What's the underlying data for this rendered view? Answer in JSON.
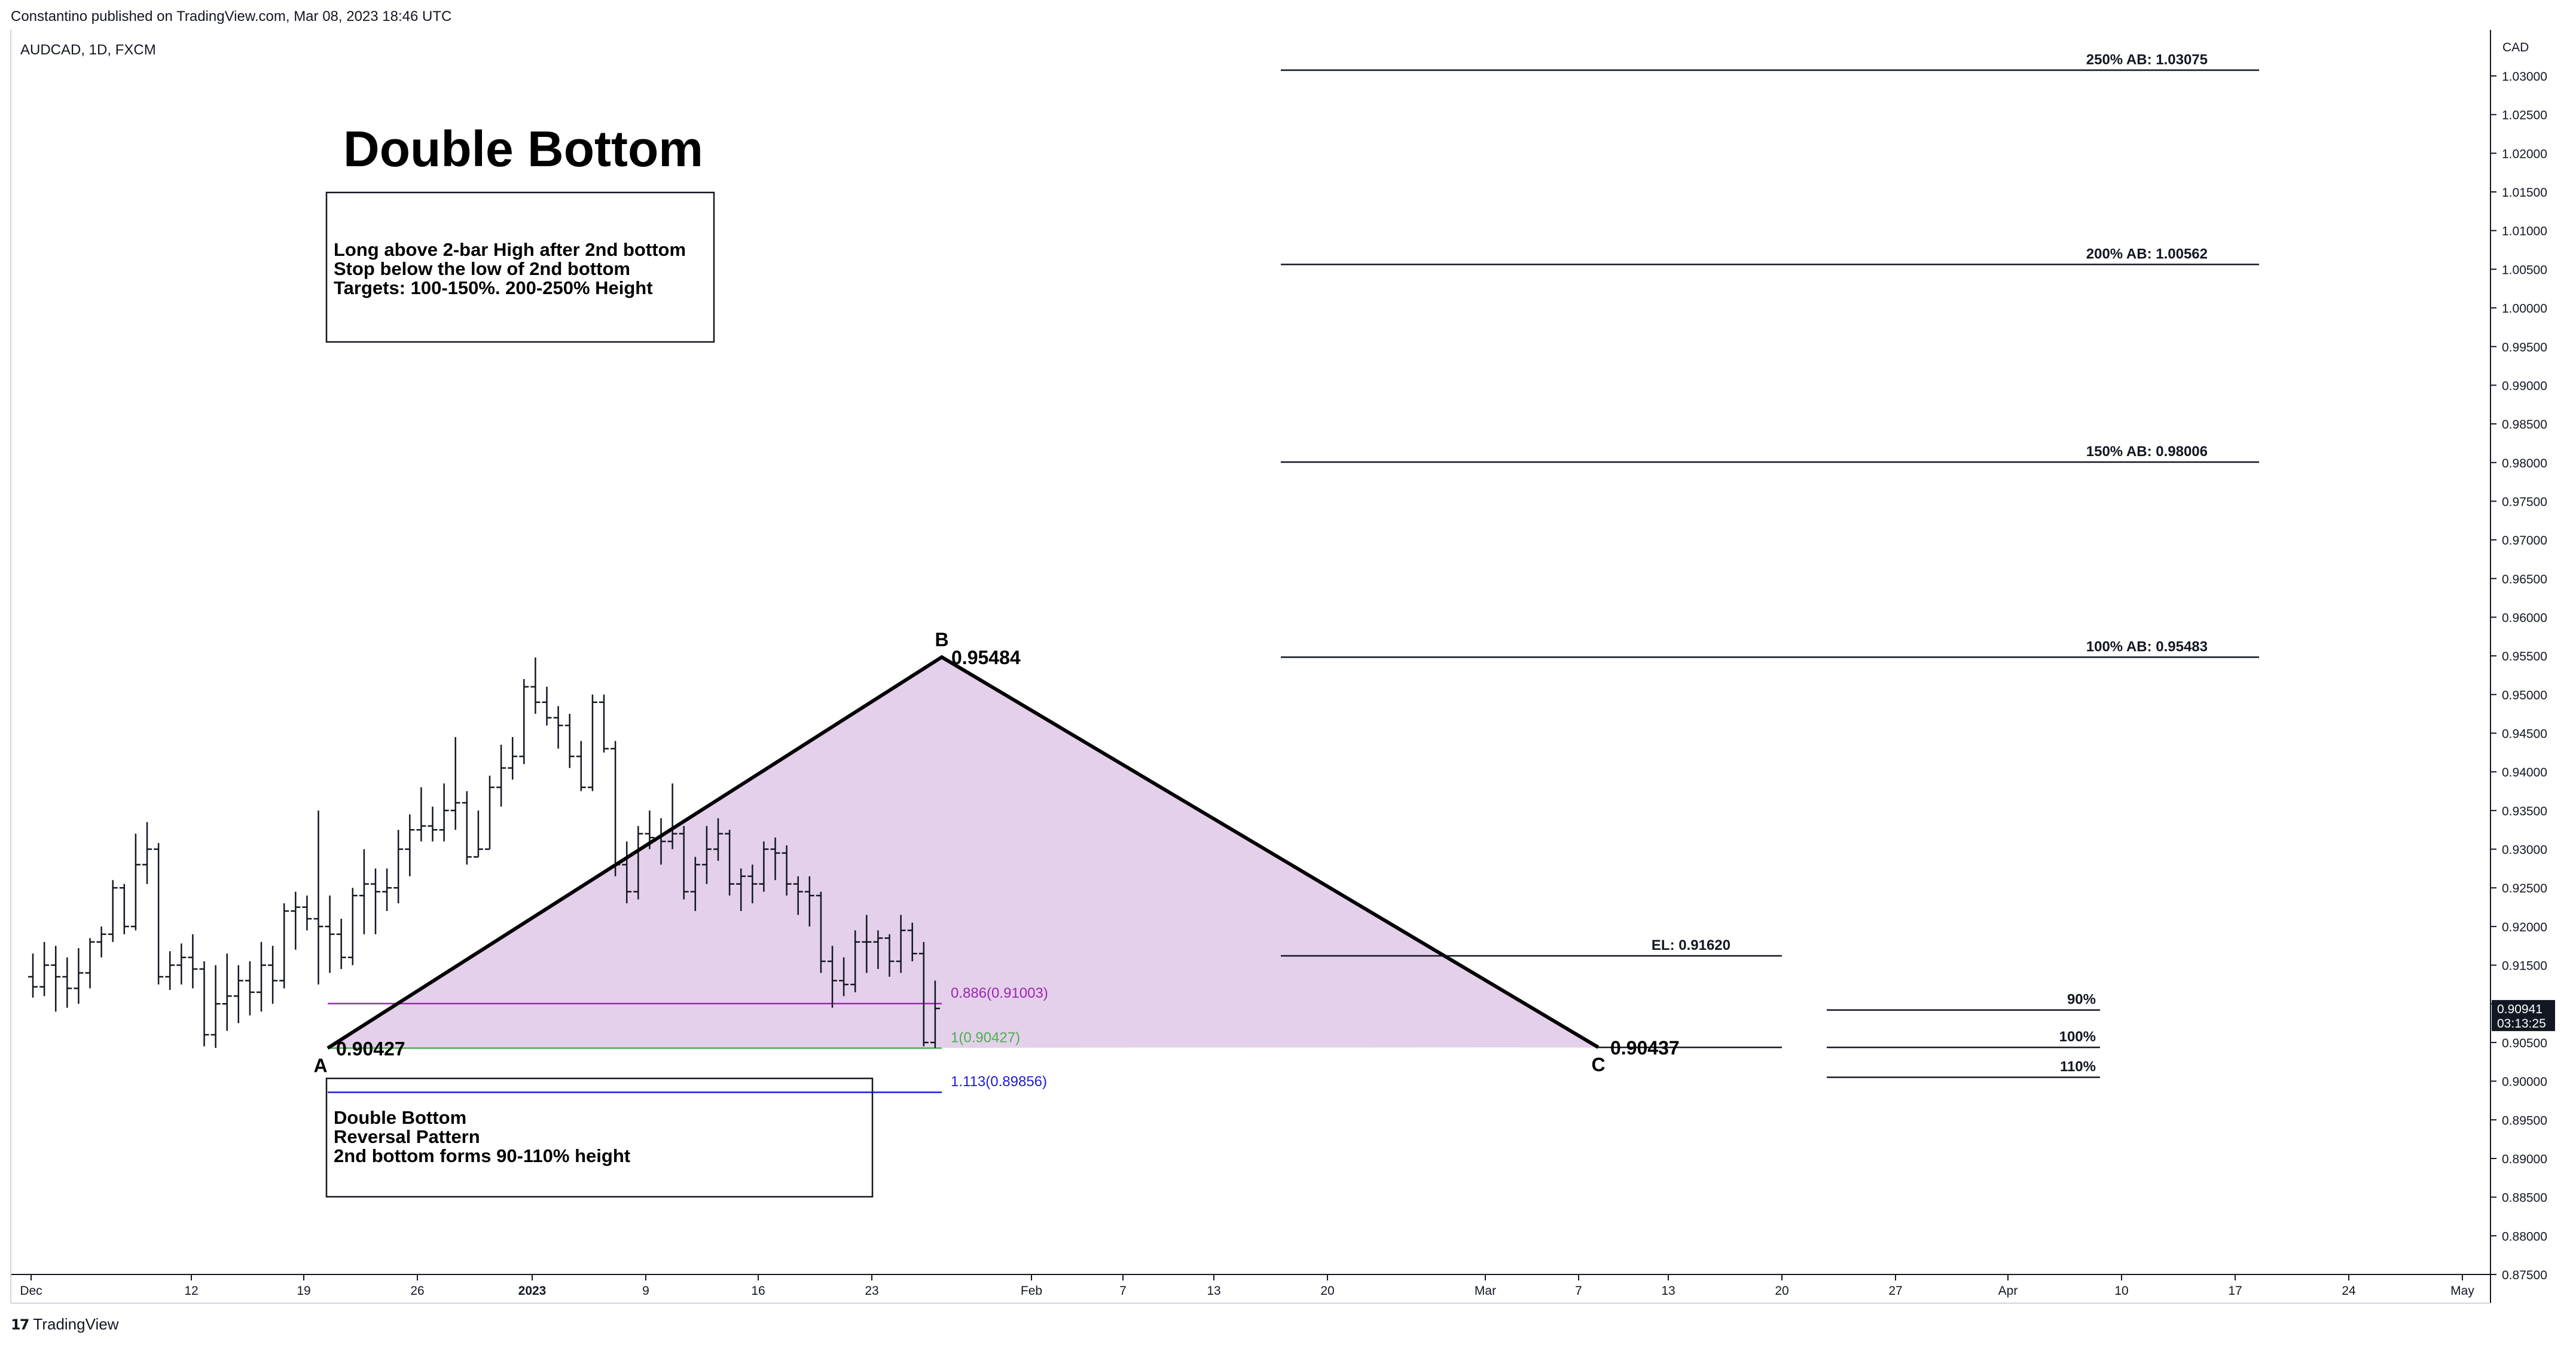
{
  "header": {
    "published": "Constantino published on TradingView.com, Mar 08, 2023 18:46 UTC",
    "symbol": "AUDCAD, 1D, FXCM",
    "currency": "CAD"
  },
  "footer": {
    "brand": "TradingView",
    "logo": "17"
  },
  "current_price": {
    "value": "0.90941",
    "countdown": "03:13:25",
    "color": "#131722"
  },
  "annotations": {
    "title": "Double Bottom",
    "rules_box": [
      "Long above 2-bar High after 2nd bottom",
      "Stop below the low of 2nd bottom",
      "Targets: 100-150%. 200-250% Height"
    ],
    "pattern_box": [
      "Double Bottom",
      "Reversal Pattern",
      "2nd bottom forms 90-110% height"
    ],
    "point_labels": {
      "A": "A",
      "B": "B",
      "C": "C"
    },
    "point_values": {
      "A": "0.90427",
      "B": "0.95484",
      "C": "0.90437"
    },
    "fib_levels": [
      {
        "label": "0.886(0.91003)",
        "price": 0.91003,
        "color": "#9c27b0"
      },
      {
        "label": "1(0.90427)",
        "price": 0.90427,
        "color": "#4caf50"
      },
      {
        "label": "1.113(0.89856)",
        "price": 0.89856,
        "color": "#1c1cd4"
      }
    ],
    "targets": [
      {
        "label": "250% AB: 1.03075",
        "price": 1.03075
      },
      {
        "label": "200% AB: 1.00562",
        "price": 1.00562
      },
      {
        "label": "150% AB: 0.98006",
        "price": 0.98006
      },
      {
        "label": "100% AB: 0.95483",
        "price": 0.95483
      }
    ],
    "entry": {
      "label": "EL: 0.91620",
      "price": 0.9162
    },
    "retrace_levels": [
      {
        "label": "90%",
        "price": 0.9092
      },
      {
        "label": "100%",
        "price": 0.90437
      },
      {
        "label": "110%",
        "price": 0.9005
      }
    ],
    "pattern_fill": "#e4d0ea"
  },
  "chart_data": {
    "type": "ohlc_bar",
    "symbol": "AUDCAD",
    "ylim": [
      0.875,
      1.0375
    ],
    "y_ticks": [
      "0.87500",
      "0.88000",
      "0.88500",
      "0.89000",
      "0.89500",
      "0.90000",
      "0.90500",
      "0.91000",
      "0.91500",
      "0.92000",
      "0.92500",
      "0.93000",
      "0.93500",
      "0.94000",
      "0.94500",
      "0.95000",
      "0.95500",
      "0.96000",
      "0.96500",
      "0.97000",
      "0.97500",
      "0.98000",
      "0.98500",
      "0.99000",
      "0.99500",
      "1.00000",
      "1.00500",
      "1.01000",
      "1.01500",
      "1.02000",
      "1.02500",
      "1.03000"
    ],
    "x_ticks": [
      "Dec",
      "12",
      "19",
      "26",
      "2023",
      "9",
      "16",
      "23",
      "Feb",
      "7",
      "13",
      "20",
      "Mar",
      "7",
      "13",
      "20",
      "27",
      "Apr",
      "10",
      "17",
      "24",
      "May"
    ],
    "bars": [
      {
        "o": 0.9135,
        "h": 0.9165,
        "l": 0.9108,
        "c": 0.9122
      },
      {
        "o": 0.9122,
        "h": 0.918,
        "l": 0.911,
        "c": 0.915
      },
      {
        "o": 0.915,
        "h": 0.9175,
        "l": 0.909,
        "c": 0.9135
      },
      {
        "o": 0.9135,
        "h": 0.916,
        "l": 0.9095,
        "c": 0.912
      },
      {
        "o": 0.912,
        "h": 0.9172,
        "l": 0.91,
        "c": 0.914
      },
      {
        "o": 0.914,
        "h": 0.9185,
        "l": 0.912,
        "c": 0.918
      },
      {
        "o": 0.918,
        "h": 0.92,
        "l": 0.916,
        "c": 0.919
      },
      {
        "o": 0.919,
        "h": 0.926,
        "l": 0.918,
        "c": 0.925
      },
      {
        "o": 0.925,
        "h": 0.9255,
        "l": 0.919,
        "c": 0.92
      },
      {
        "o": 0.92,
        "h": 0.932,
        "l": 0.9195,
        "c": 0.928
      },
      {
        "o": 0.928,
        "h": 0.9335,
        "l": 0.9255,
        "c": 0.93
      },
      {
        "o": 0.93,
        "h": 0.9308,
        "l": 0.9125,
        "c": 0.9135
      },
      {
        "o": 0.9135,
        "h": 0.9168,
        "l": 0.9118,
        "c": 0.915
      },
      {
        "o": 0.915,
        "h": 0.9178,
        "l": 0.9125,
        "c": 0.916
      },
      {
        "o": 0.916,
        "h": 0.919,
        "l": 0.912,
        "c": 0.9145
      },
      {
        "o": 0.9145,
        "h": 0.9155,
        "l": 0.9045,
        "c": 0.906
      },
      {
        "o": 0.906,
        "h": 0.915,
        "l": 0.9043,
        "c": 0.91
      },
      {
        "o": 0.91,
        "h": 0.9165,
        "l": 0.9065,
        "c": 0.911
      },
      {
        "o": 0.911,
        "h": 0.915,
        "l": 0.9075,
        "c": 0.913
      },
      {
        "o": 0.913,
        "h": 0.9155,
        "l": 0.9085,
        "c": 0.9115
      },
      {
        "o": 0.9115,
        "h": 0.918,
        "l": 0.909,
        "c": 0.915
      },
      {
        "o": 0.915,
        "h": 0.9175,
        "l": 0.91,
        "c": 0.913
      },
      {
        "o": 0.913,
        "h": 0.923,
        "l": 0.912,
        "c": 0.922
      },
      {
        "o": 0.922,
        "h": 0.9245,
        "l": 0.917,
        "c": 0.9225
      },
      {
        "o": 0.9225,
        "h": 0.924,
        "l": 0.9195,
        "c": 0.921
      },
      {
        "o": 0.921,
        "h": 0.935,
        "l": 0.9125,
        "c": 0.92
      },
      {
        "o": 0.92,
        "h": 0.924,
        "l": 0.914,
        "c": 0.919
      },
      {
        "o": 0.919,
        "h": 0.921,
        "l": 0.9145,
        "c": 0.916
      },
      {
        "o": 0.916,
        "h": 0.925,
        "l": 0.915,
        "c": 0.924
      },
      {
        "o": 0.924,
        "h": 0.93,
        "l": 0.919,
        "c": 0.9255
      },
      {
        "o": 0.9255,
        "h": 0.9275,
        "l": 0.919,
        "c": 0.9245
      },
      {
        "o": 0.9245,
        "h": 0.9275,
        "l": 0.922,
        "c": 0.925
      },
      {
        "o": 0.925,
        "h": 0.9325,
        "l": 0.923,
        "c": 0.93
      },
      {
        "o": 0.93,
        "h": 0.9345,
        "l": 0.9265,
        "c": 0.9325
      },
      {
        "o": 0.9325,
        "h": 0.938,
        "l": 0.931,
        "c": 0.933
      },
      {
        "o": 0.933,
        "h": 0.9355,
        "l": 0.931,
        "c": 0.9325
      },
      {
        "o": 0.9325,
        "h": 0.9385,
        "l": 0.931,
        "c": 0.935
      },
      {
        "o": 0.935,
        "h": 0.9445,
        "l": 0.9325,
        "c": 0.936
      },
      {
        "o": 0.936,
        "h": 0.9375,
        "l": 0.928,
        "c": 0.929
      },
      {
        "o": 0.929,
        "h": 0.935,
        "l": 0.929,
        "c": 0.93
      },
      {
        "o": 0.93,
        "h": 0.9395,
        "l": 0.93,
        "c": 0.938
      },
      {
        "o": 0.938,
        "h": 0.9435,
        "l": 0.9355,
        "c": 0.9405
      },
      {
        "o": 0.9405,
        "h": 0.9445,
        "l": 0.939,
        "c": 0.942
      },
      {
        "o": 0.942,
        "h": 0.952,
        "l": 0.941,
        "c": 0.951
      },
      {
        "o": 0.951,
        "h": 0.9548,
        "l": 0.9475,
        "c": 0.949
      },
      {
        "o": 0.949,
        "h": 0.951,
        "l": 0.946,
        "c": 0.947
      },
      {
        "o": 0.947,
        "h": 0.9485,
        "l": 0.943,
        "c": 0.946
      },
      {
        "o": 0.946,
        "h": 0.9475,
        "l": 0.9405,
        "c": 0.942
      },
      {
        "o": 0.942,
        "h": 0.944,
        "l": 0.9375,
        "c": 0.938
      },
      {
        "o": 0.938,
        "h": 0.95,
        "l": 0.9375,
        "c": 0.949
      },
      {
        "o": 0.949,
        "h": 0.95,
        "l": 0.9425,
        "c": 0.943
      },
      {
        "o": 0.943,
        "h": 0.944,
        "l": 0.9265,
        "c": 0.928
      },
      {
        "o": 0.928,
        "h": 0.931,
        "l": 0.923,
        "c": 0.9245
      },
      {
        "o": 0.9245,
        "h": 0.933,
        "l": 0.9235,
        "c": 0.932
      },
      {
        "o": 0.932,
        "h": 0.935,
        "l": 0.93,
        "c": 0.9315
      },
      {
        "o": 0.9315,
        "h": 0.934,
        "l": 0.928,
        "c": 0.931
      },
      {
        "o": 0.931,
        "h": 0.9385,
        "l": 0.93,
        "c": 0.932
      },
      {
        "o": 0.932,
        "h": 0.933,
        "l": 0.9235,
        "c": 0.9245
      },
      {
        "o": 0.9245,
        "h": 0.929,
        "l": 0.922,
        "c": 0.928
      },
      {
        "o": 0.928,
        "h": 0.933,
        "l": 0.9255,
        "c": 0.93
      },
      {
        "o": 0.93,
        "h": 0.934,
        "l": 0.9285,
        "c": 0.932
      },
      {
        "o": 0.932,
        "h": 0.9325,
        "l": 0.924,
        "c": 0.9255
      },
      {
        "o": 0.9255,
        "h": 0.9275,
        "l": 0.922,
        "c": 0.9265
      },
      {
        "o": 0.9265,
        "h": 0.928,
        "l": 0.923,
        "c": 0.9255
      },
      {
        "o": 0.9255,
        "h": 0.931,
        "l": 0.9245,
        "c": 0.93
      },
      {
        "o": 0.93,
        "h": 0.9315,
        "l": 0.926,
        "c": 0.9295
      },
      {
        "o": 0.9295,
        "h": 0.9305,
        "l": 0.924,
        "c": 0.9255
      },
      {
        "o": 0.9255,
        "h": 0.9265,
        "l": 0.9215,
        "c": 0.9245
      },
      {
        "o": 0.9245,
        "h": 0.9265,
        "l": 0.92,
        "c": 0.924
      },
      {
        "o": 0.924,
        "h": 0.9245,
        "l": 0.914,
        "c": 0.9155
      },
      {
        "o": 0.9155,
        "h": 0.9175,
        "l": 0.9095,
        "c": 0.913
      },
      {
        "o": 0.913,
        "h": 0.916,
        "l": 0.911,
        "c": 0.9125
      },
      {
        "o": 0.9125,
        "h": 0.9195,
        "l": 0.9115,
        "c": 0.918
      },
      {
        "o": 0.918,
        "h": 0.9215,
        "l": 0.914,
        "c": 0.918
      },
      {
        "o": 0.918,
        "h": 0.9195,
        "l": 0.9145,
        "c": 0.9185
      },
      {
        "o": 0.9185,
        "h": 0.919,
        "l": 0.9135,
        "c": 0.9155
      },
      {
        "o": 0.9155,
        "h": 0.9215,
        "l": 0.914,
        "c": 0.9195
      },
      {
        "o": 0.9195,
        "h": 0.9205,
        "l": 0.9155,
        "c": 0.9165
      },
      {
        "o": 0.9165,
        "h": 0.918,
        "l": 0.9045,
        "c": 0.905
      },
      {
        "o": 0.905,
        "h": 0.913,
        "l": 0.9043,
        "c": 0.9094
      }
    ]
  }
}
